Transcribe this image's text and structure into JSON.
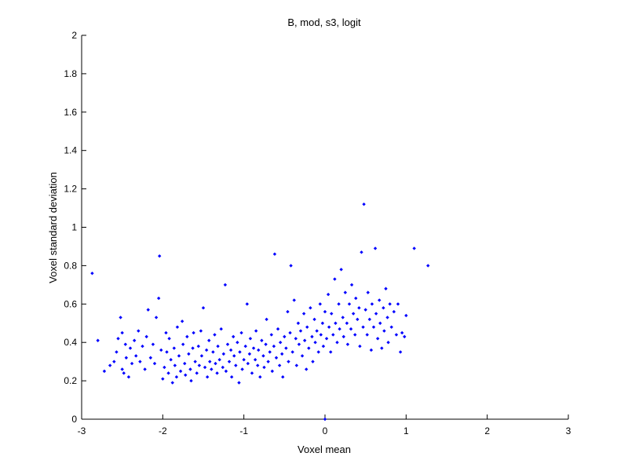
{
  "chart_data": {
    "type": "scatter",
    "title": "B, mod, s3, logit",
    "xlabel": "Voxel mean",
    "ylabel": "Voxel standard deviation",
    "xlim": [
      -3,
      3
    ],
    "ylim": [
      0,
      2
    ],
    "xticks": [
      -3,
      -2,
      -1,
      0,
      1,
      2,
      3
    ],
    "yticks": [
      0,
      0.2,
      0.4,
      0.6,
      0.8,
      1,
      1.2,
      1.4,
      1.6,
      1.8,
      2
    ],
    "xtick_labels": [
      "-3",
      "-2",
      "-1",
      "0",
      "1",
      "2",
      "3"
    ],
    "ytick_labels": [
      "0",
      "0.2",
      "0.4",
      "0.6",
      "0.8",
      "1",
      "1.2",
      "1.4",
      "1.6",
      "1.8",
      "2"
    ],
    "marker_color": "#0000ff",
    "grid": false,
    "box": false,
    "points": [
      [
        -2.87,
        0.76
      ],
      [
        -2.8,
        0.41
      ],
      [
        -2.72,
        0.25
      ],
      [
        -2.65,
        0.28
      ],
      [
        -2.6,
        0.3
      ],
      [
        -2.57,
        0.35
      ],
      [
        -2.55,
        0.42
      ],
      [
        -2.52,
        0.53
      ],
      [
        -2.5,
        0.45
      ],
      [
        -2.5,
        0.26
      ],
      [
        -2.48,
        0.24
      ],
      [
        -2.46,
        0.39
      ],
      [
        -2.45,
        0.32
      ],
      [
        -2.42,
        0.22
      ],
      [
        -2.4,
        0.37
      ],
      [
        -2.38,
        0.29
      ],
      [
        -2.35,
        0.41
      ],
      [
        -2.33,
        0.33
      ],
      [
        -2.3,
        0.46
      ],
      [
        -2.28,
        0.3
      ],
      [
        -2.25,
        0.38
      ],
      [
        -2.22,
        0.26
      ],
      [
        -2.2,
        0.43
      ],
      [
        -2.18,
        0.57
      ],
      [
        -2.15,
        0.32
      ],
      [
        -2.12,
        0.39
      ],
      [
        -2.1,
        0.29
      ],
      [
        -2.08,
        0.53
      ],
      [
        -2.05,
        0.63
      ],
      [
        -2.04,
        0.85
      ],
      [
        -2.02,
        0.36
      ],
      [
        -2.0,
        0.21
      ],
      [
        -1.98,
        0.27
      ],
      [
        -1.96,
        0.45
      ],
      [
        -1.95,
        0.35
      ],
      [
        -1.93,
        0.24
      ],
      [
        -1.92,
        0.42
      ],
      [
        -1.9,
        0.31
      ],
      [
        -1.88,
        0.19
      ],
      [
        -1.86,
        0.37
      ],
      [
        -1.85,
        0.28
      ],
      [
        -1.83,
        0.22
      ],
      [
        -1.82,
        0.48
      ],
      [
        -1.8,
        0.33
      ],
      [
        -1.78,
        0.25
      ],
      [
        -1.76,
        0.51
      ],
      [
        -1.75,
        0.39
      ],
      [
        -1.73,
        0.29
      ],
      [
        -1.72,
        0.23
      ],
      [
        -1.7,
        0.43
      ],
      [
        -1.68,
        0.34
      ],
      [
        -1.66,
        0.26
      ],
      [
        -1.65,
        0.2
      ],
      [
        -1.63,
        0.37
      ],
      [
        -1.62,
        0.45
      ],
      [
        -1.6,
        0.3
      ],
      [
        -1.58,
        0.24
      ],
      [
        -1.56,
        0.38
      ],
      [
        -1.55,
        0.28
      ],
      [
        -1.53,
        0.46
      ],
      [
        -1.52,
        0.33
      ],
      [
        -1.5,
        0.58
      ],
      [
        -1.48,
        0.27
      ],
      [
        -1.46,
        0.36
      ],
      [
        -1.45,
        0.22
      ],
      [
        -1.43,
        0.41
      ],
      [
        -1.42,
        0.3
      ],
      [
        -1.4,
        0.26
      ],
      [
        -1.38,
        0.35
      ],
      [
        -1.36,
        0.44
      ],
      [
        -1.35,
        0.29
      ],
      [
        -1.33,
        0.24
      ],
      [
        -1.32,
        0.38
      ],
      [
        -1.3,
        0.31
      ],
      [
        -1.28,
        0.47
      ],
      [
        -1.26,
        0.27
      ],
      [
        -1.25,
        0.34
      ],
      [
        -1.23,
        0.7
      ],
      [
        -1.22,
        0.25
      ],
      [
        -1.2,
        0.39
      ],
      [
        -1.18,
        0.3
      ],
      [
        -1.16,
        0.36
      ],
      [
        -1.15,
        0.22
      ],
      [
        -1.13,
        0.43
      ],
      [
        -1.12,
        0.33
      ],
      [
        -1.1,
        0.28
      ],
      [
        -1.08,
        0.4
      ],
      [
        -1.06,
        0.19
      ],
      [
        -1.05,
        0.35
      ],
      [
        -1.03,
        0.45
      ],
      [
        -1.02,
        0.26
      ],
      [
        -1.0,
        0.31
      ],
      [
        -0.98,
        0.38
      ],
      [
        -0.96,
        0.6
      ],
      [
        -0.95,
        0.29
      ],
      [
        -0.93,
        0.34
      ],
      [
        -0.92,
        0.42
      ],
      [
        -0.9,
        0.24
      ],
      [
        -0.88,
        0.37
      ],
      [
        -0.86,
        0.31
      ],
      [
        -0.85,
        0.46
      ],
      [
        -0.83,
        0.28
      ],
      [
        -0.82,
        0.36
      ],
      [
        -0.8,
        0.22
      ],
      [
        -0.78,
        0.41
      ],
      [
        -0.76,
        0.33
      ],
      [
        -0.75,
        0.27
      ],
      [
        -0.73,
        0.39
      ],
      [
        -0.72,
        0.52
      ],
      [
        -0.7,
        0.3
      ],
      [
        -0.68,
        0.35
      ],
      [
        -0.66,
        0.44
      ],
      [
        -0.65,
        0.25
      ],
      [
        -0.63,
        0.38
      ],
      [
        -0.62,
        0.86
      ],
      [
        -0.6,
        0.32
      ],
      [
        -0.58,
        0.47
      ],
      [
        -0.56,
        0.28
      ],
      [
        -0.55,
        0.4
      ],
      [
        -0.53,
        0.34
      ],
      [
        -0.52,
        0.22
      ],
      [
        -0.5,
        0.43
      ],
      [
        -0.48,
        0.37
      ],
      [
        -0.46,
        0.56
      ],
      [
        -0.45,
        0.3
      ],
      [
        -0.43,
        0.45
      ],
      [
        -0.42,
        0.8
      ],
      [
        -0.4,
        0.35
      ],
      [
        -0.38,
        0.62
      ],
      [
        -0.36,
        0.42
      ],
      [
        -0.35,
        0.28
      ],
      [
        -0.33,
        0.5
      ],
      [
        -0.32,
        0.39
      ],
      [
        -0.3,
        0.46
      ],
      [
        -0.28,
        0.33
      ],
      [
        -0.26,
        0.55
      ],
      [
        -0.25,
        0.41
      ],
      [
        -0.23,
        0.26
      ],
      [
        -0.22,
        0.48
      ],
      [
        -0.2,
        0.37
      ],
      [
        -0.18,
        0.58
      ],
      [
        -0.16,
        0.43
      ],
      [
        -0.15,
        0.3
      ],
      [
        -0.13,
        0.52
      ],
      [
        -0.12,
        0.4
      ],
      [
        -0.1,
        0.46
      ],
      [
        -0.08,
        0.35
      ],
      [
        -0.06,
        0.6
      ],
      [
        -0.05,
        0.44
      ],
      [
        -0.03,
        0.5
      ],
      [
        -0.02,
        0.38
      ],
      [
        0.0,
        0.0
      ],
      [
        0.0,
        0.56
      ],
      [
        0.02,
        0.42
      ],
      [
        0.04,
        0.65
      ],
      [
        0.05,
        0.48
      ],
      [
        0.07,
        0.35
      ],
      [
        0.08,
        0.55
      ],
      [
        0.1,
        0.44
      ],
      [
        0.12,
        0.73
      ],
      [
        0.13,
        0.5
      ],
      [
        0.15,
        0.4
      ],
      [
        0.17,
        0.6
      ],
      [
        0.18,
        0.47
      ],
      [
        0.2,
        0.78
      ],
      [
        0.22,
        0.53
      ],
      [
        0.23,
        0.43
      ],
      [
        0.25,
        0.66
      ],
      [
        0.27,
        0.5
      ],
      [
        0.28,
        0.39
      ],
      [
        0.3,
        0.6
      ],
      [
        0.32,
        0.47
      ],
      [
        0.33,
        0.7
      ],
      [
        0.35,
        0.55
      ],
      [
        0.37,
        0.44
      ],
      [
        0.38,
        0.63
      ],
      [
        0.4,
        0.52
      ],
      [
        0.42,
        0.58
      ],
      [
        0.43,
        0.38
      ],
      [
        0.45,
        0.87
      ],
      [
        0.47,
        0.48
      ],
      [
        0.48,
        1.12
      ],
      [
        0.5,
        0.57
      ],
      [
        0.52,
        0.44
      ],
      [
        0.53,
        0.66
      ],
      [
        0.55,
        0.52
      ],
      [
        0.57,
        0.36
      ],
      [
        0.58,
        0.6
      ],
      [
        0.6,
        0.48
      ],
      [
        0.62,
        0.89
      ],
      [
        0.63,
        0.55
      ],
      [
        0.65,
        0.42
      ],
      [
        0.67,
        0.62
      ],
      [
        0.68,
        0.5
      ],
      [
        0.7,
        0.37
      ],
      [
        0.72,
        0.58
      ],
      [
        0.73,
        0.46
      ],
      [
        0.75,
        0.68
      ],
      [
        0.77,
        0.53
      ],
      [
        0.78,
        0.4
      ],
      [
        0.8,
        0.6
      ],
      [
        0.82,
        0.48
      ],
      [
        0.85,
        0.56
      ],
      [
        0.88,
        0.44
      ],
      [
        0.9,
        0.6
      ],
      [
        0.93,
        0.35
      ],
      [
        0.95,
        0.45
      ],
      [
        0.98,
        0.43
      ],
      [
        1.0,
        0.54
      ],
      [
        1.1,
        0.89
      ],
      [
        1.27,
        0.8
      ]
    ]
  }
}
